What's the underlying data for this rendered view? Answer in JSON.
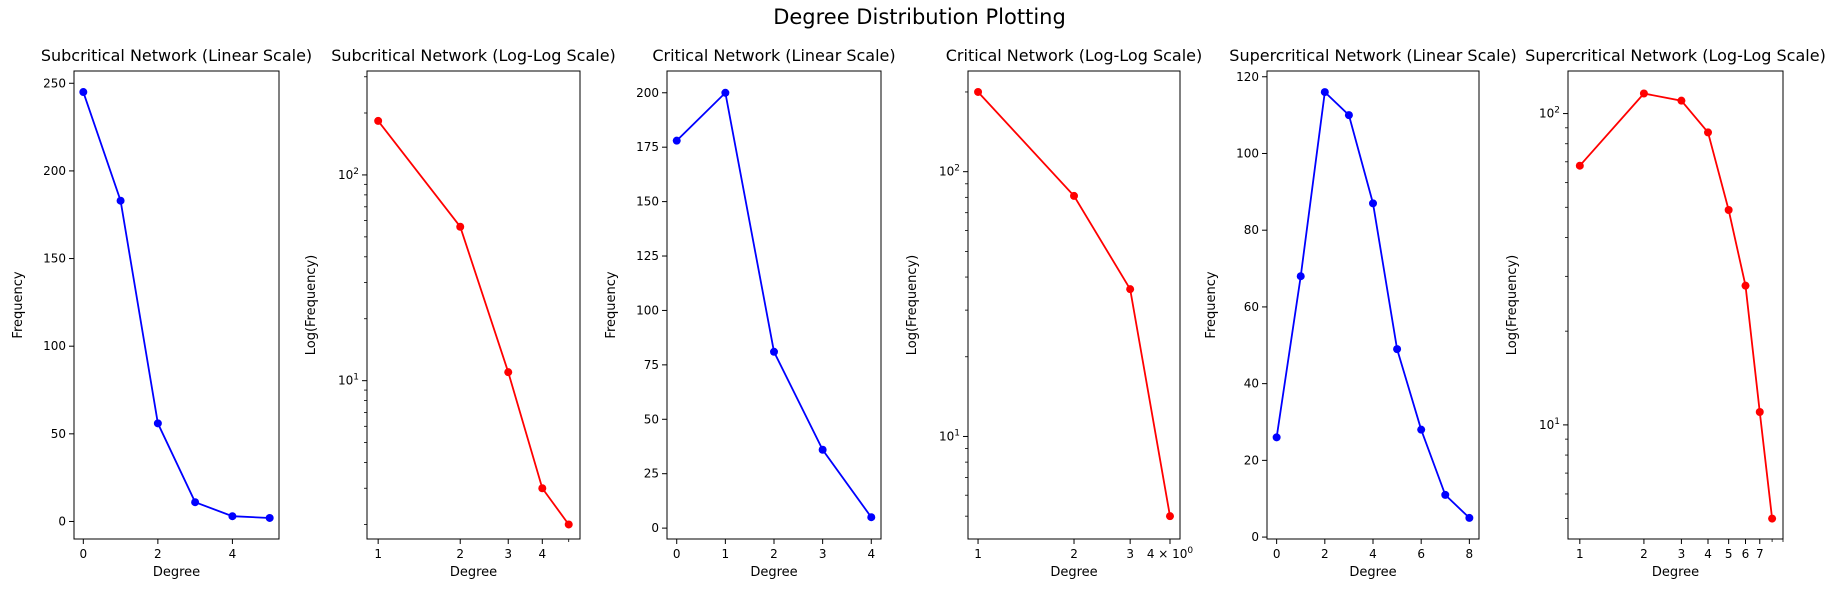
{
  "figure": {
    "title": "Degree Distribution Plotting"
  },
  "chart_data": [
    {
      "type": "line",
      "title": "Subcritical Network (Linear Scale)",
      "xlabel": "Degree",
      "ylabel": "Frequency",
      "xscale": "linear",
      "yscale": "linear",
      "color": "#0000ff",
      "x": [
        0,
        1,
        2,
        3,
        4,
        5
      ],
      "y": [
        245,
        183,
        56,
        11,
        3,
        2
      ],
      "xlim": [
        -0.25,
        5.25
      ],
      "ylim": [
        -10,
        257
      ],
      "xticks": [
        0,
        2,
        4
      ],
      "xtick_labels": [
        "0",
        "2",
        "4"
      ],
      "yticks": [
        0,
        50,
        100,
        150,
        200,
        250
      ],
      "ytick_labels": [
        "0",
        "50",
        "100",
        "150",
        "200",
        "250"
      ]
    },
    {
      "type": "line",
      "title": "Subcritical Network (Log-Log Scale)",
      "xlabel": "Degree",
      "ylabel": "Log(Frequency)",
      "xscale": "log",
      "yscale": "log",
      "color": "#ff0000",
      "x": [
        1,
        2,
        3,
        4,
        5
      ],
      "y": [
        183,
        56,
        11,
        3,
        2
      ],
      "xlim": [
        0.91,
        5.5
      ],
      "ylim": [
        1.7,
        320
      ],
      "xticks": [
        1,
        2,
        3,
        4
      ],
      "xtick_labels": [
        "1",
        "2",
        "3",
        "4"
      ],
      "yticks": [
        10,
        100
      ],
      "ytick_labels": [
        "10^1",
        "10^2"
      ]
    },
    {
      "type": "line",
      "title": "Critical Network (Linear Scale)",
      "xlabel": "Degree",
      "ylabel": "Frequency",
      "xscale": "linear",
      "yscale": "linear",
      "color": "#0000ff",
      "x": [
        0,
        1,
        2,
        3,
        4
      ],
      "y": [
        178,
        200,
        81,
        36,
        5
      ],
      "xlim": [
        -0.2,
        4.2
      ],
      "ylim": [
        -5,
        210
      ],
      "xticks": [
        0,
        1,
        2,
        3,
        4
      ],
      "xtick_labels": [
        "0",
        "1",
        "2",
        "3",
        "4"
      ],
      "yticks": [
        0,
        25,
        50,
        75,
        100,
        125,
        150,
        175,
        200
      ],
      "ytick_labels": [
        "0",
        "25",
        "50",
        "75",
        "100",
        "125",
        "150",
        "175",
        "200"
      ]
    },
    {
      "type": "line",
      "title": "Critical Network (Log-Log Scale)",
      "xlabel": "Degree",
      "ylabel": "Log(Frequency)",
      "xscale": "log",
      "yscale": "log",
      "color": "#ff0000",
      "x": [
        1,
        2,
        3,
        4
      ],
      "y": [
        200,
        81,
        36,
        5
      ],
      "xlim": [
        0.93,
        4.3
      ],
      "ylim": [
        4.1,
        240
      ],
      "xticks": [
        1,
        2,
        3,
        4
      ],
      "xtick_labels": [
        "1",
        "2",
        "3",
        "4 × 10^0"
      ],
      "yticks": [
        10,
        100
      ],
      "ytick_labels": [
        "10^1",
        "10^2"
      ]
    },
    {
      "type": "line",
      "title": "Supercritical Network (Linear Scale)",
      "xlabel": "Degree",
      "ylabel": "Frequency",
      "xscale": "linear",
      "yscale": "linear",
      "color": "#0000ff",
      "x": [
        0,
        1,
        2,
        3,
        4,
        5,
        6,
        7,
        8
      ],
      "y": [
        26,
        68,
        116,
        110,
        87,
        49,
        28,
        11,
        5
      ],
      "xlim": [
        -0.4,
        8.4
      ],
      "ylim": [
        -0.5,
        121.5
      ],
      "xticks": [
        0,
        2,
        4,
        6,
        8
      ],
      "xtick_labels": [
        "0",
        "2",
        "4",
        "6",
        "8"
      ],
      "yticks": [
        0,
        20,
        40,
        60,
        80,
        100,
        120
      ],
      "ytick_labels": [
        "0",
        "20",
        "40",
        "60",
        "80",
        "100",
        "120"
      ]
    },
    {
      "type": "line",
      "title": "Supercritical Network (Log-Log Scale)",
      "xlabel": "Degree",
      "ylabel": "Log(Frequency)",
      "xscale": "log",
      "yscale": "log",
      "color": "#ff0000",
      "x": [
        1,
        2,
        3,
        4,
        5,
        6,
        7,
        8
      ],
      "y": [
        68,
        116,
        110,
        87,
        49,
        28,
        11,
        5
      ],
      "xlim": [
        0.88,
        9.0
      ],
      "ylim": [
        4.3,
        137
      ],
      "xticks": [
        1,
        2,
        3,
        4,
        5,
        6,
        7
      ],
      "xtick_labels": [
        "1",
        "2",
        "3",
        "4",
        "5",
        "6",
        "7"
      ],
      "yticks": [
        10,
        100
      ],
      "ytick_labels": [
        "10^1",
        "10^2"
      ]
    }
  ]
}
